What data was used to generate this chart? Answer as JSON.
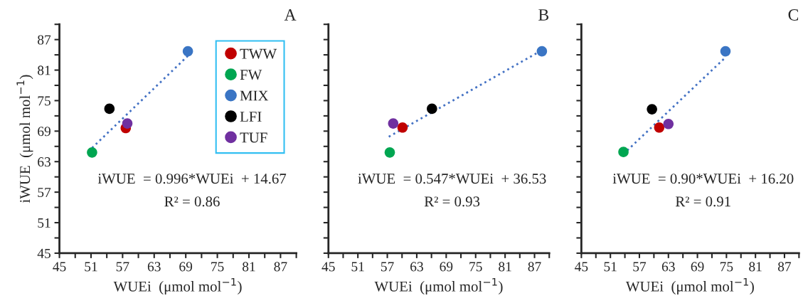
{
  "chart_data": [
    {
      "type": "scatter",
      "title": "A",
      "xlabel": "WUEi  (μmol mol$^{−1}$)",
      "ylabel": "iWUE  (μmol mol$^{−1}$)",
      "marker": "circle",
      "legend": "top right",
      "grid": false,
      "xlim": [
        45,
        90
      ],
      "ylim": [
        45,
        90
      ],
      "xticks": [
        45,
        {
          "value": 48,
          "label": null
        },
        51,
        {
          "value": 54,
          "label": null
        },
        57,
        {
          "value": 60,
          "label": null
        },
        63,
        {
          "value": 66,
          "label": null
        },
        69,
        {
          "value": 72,
          "label": null
        },
        75,
        {
          "value": 78,
          "label": null
        },
        81,
        {
          "value": 84,
          "label": null
        },
        87,
        {
          "value": 90,
          "label": null
        }
      ],
      "yticks": [
        45,
        {
          "value": 48,
          "label": null
        },
        51,
        {
          "value": 54,
          "label": null
        },
        57,
        {
          "value": 60,
          "label": null
        },
        63,
        {
          "value": 66,
          "label": null
        },
        69,
        {
          "value": 72,
          "label": null
        },
        75,
        {
          "value": 78,
          "label": null
        },
        81,
        {
          "value": 84,
          "label": null
        },
        87,
        {
          "value": 90,
          "label": null
        }
      ],
      "annotations": [
        "iWUE  = 0.996*WUEi  + 14.67",
        "R² = 0.86"
      ],
      "series": [
        {
          "name": "TWW",
          "color": "#c00000",
          "x": [
            57.6
          ],
          "values": [
            69.6
          ]
        },
        {
          "name": "FW",
          "color": "#00a651",
          "x": [
            51.2
          ],
          "values": [
            64.8
          ]
        },
        {
          "name": "MIX",
          "color": "#3a75c4",
          "x": [
            69.4
          ],
          "values": [
            84.7
          ]
        },
        {
          "name": "LFI",
          "color": "#000000",
          "x": [
            54.5
          ],
          "values": [
            73.4
          ]
        },
        {
          "name": "TUF",
          "color": "#7030a0",
          "x": [
            57.9
          ],
          "values": [
            70.5
          ]
        },
        {
          "type": "line",
          "line_style": "dotted",
          "marker": "none",
          "color": "#4472c4",
          "x": [
            51.2,
            69.4
          ],
          "values": [
            65.7,
            83.8
          ]
        }
      ]
    },
    {
      "type": "scatter",
      "title": "B",
      "xlabel": "WUEi  (μmol mol$^{−1}$)",
      "marker": "circle",
      "grid": false,
      "tick_labels": "x",
      "xlim": [
        45,
        90
      ],
      "ylim": [
        45,
        90
      ],
      "xticks": [
        45,
        {
          "value": 48,
          "label": null
        },
        51,
        {
          "value": 54,
          "label": null
        },
        57,
        {
          "value": 60,
          "label": null
        },
        63,
        {
          "value": 66,
          "label": null
        },
        69,
        {
          "value": 72,
          "label": null
        },
        75,
        {
          "value": 78,
          "label": null
        },
        81,
        {
          "value": 84,
          "label": null
        },
        87,
        {
          "value": 90,
          "label": null
        }
      ],
      "yticks": [
        45,
        {
          "value": 48,
          "label": null
        },
        51,
        {
          "value": 54,
          "label": null
        },
        57,
        {
          "value": 60,
          "label": null
        },
        63,
        {
          "value": 66,
          "label": null
        },
        69,
        {
          "value": 72,
          "label": null
        },
        75,
        {
          "value": 78,
          "label": null
        },
        81,
        {
          "value": 84,
          "label": null
        },
        87,
        {
          "value": 90,
          "label": null
        }
      ],
      "annotations": [
        "iWUE  = 0.547*WUEi  + 36.53",
        "R² = 0.93"
      ],
      "series": [
        {
          "color": "#c00000",
          "x": [
            60.1
          ],
          "values": [
            69.7
          ]
        },
        {
          "color": "#00a651",
          "x": [
            57.5
          ],
          "values": [
            64.8
          ]
        },
        {
          "color": "#3a75c4",
          "x": [
            88.5
          ],
          "values": [
            84.7
          ]
        },
        {
          "color": "#000000",
          "x": [
            66.1
          ],
          "values": [
            73.4
          ]
        },
        {
          "color": "#7030a0",
          "x": [
            58.2
          ],
          "values": [
            70.5
          ]
        },
        {
          "type": "line",
          "line_style": "dotted",
          "marker": "none",
          "color": "#4472c4",
          "x": [
            57.3,
            88.5
          ],
          "values": [
            67.9,
            84.9
          ]
        }
      ]
    },
    {
      "type": "scatter",
      "title": "C",
      "xlabel": "WUEi  (μmol mol$^{−1}$)",
      "marker": "circle",
      "grid": false,
      "tick_labels": "x",
      "xlim": [
        45,
        90
      ],
      "ylim": [
        45,
        90
      ],
      "xticks": [
        45,
        {
          "value": 48,
          "label": null
        },
        51,
        {
          "value": 54,
          "label": null
        },
        57,
        {
          "value": 60,
          "label": null
        },
        63,
        {
          "value": 66,
          "label": null
        },
        69,
        {
          "value": 72,
          "label": null
        },
        75,
        {
          "value": 78,
          "label": null
        },
        81,
        {
          "value": 84,
          "label": null
        },
        87,
        {
          "value": 90,
          "label": null
        }
      ],
      "yticks": [
        45,
        {
          "value": 48,
          "label": null
        },
        51,
        {
          "value": 54,
          "label": null
        },
        57,
        {
          "value": 60,
          "label": null
        },
        63,
        {
          "value": 66,
          "label": null
        },
        69,
        {
          "value": 72,
          "label": null
        },
        75,
        {
          "value": 78,
          "label": null
        },
        81,
        {
          "value": 84,
          "label": null
        },
        87,
        {
          "value": 90,
          "label": null
        }
      ],
      "annotations": [
        "iWUE  = 0.90*WUEi  + 16.20",
        "R² = 0.91"
      ],
      "series": [
        {
          "color": "#c00000",
          "x": [
            61.1
          ],
          "values": [
            69.7
          ]
        },
        {
          "color": "#00a651",
          "x": [
            53.7
          ],
          "values": [
            64.9
          ]
        },
        {
          "color": "#3a75c4",
          "x": [
            74.8
          ],
          "values": [
            84.7
          ]
        },
        {
          "color": "#000000",
          "x": [
            59.6
          ],
          "values": [
            73.3
          ]
        },
        {
          "color": "#7030a0",
          "x": [
            63.0
          ],
          "values": [
            70.4
          ]
        },
        {
          "type": "line",
          "line_style": "dotted",
          "marker": "none",
          "color": "#4472c4",
          "x": [
            53.7,
            74.8
          ],
          "values": [
            64.5,
            83.5
          ]
        }
      ]
    }
  ]
}
